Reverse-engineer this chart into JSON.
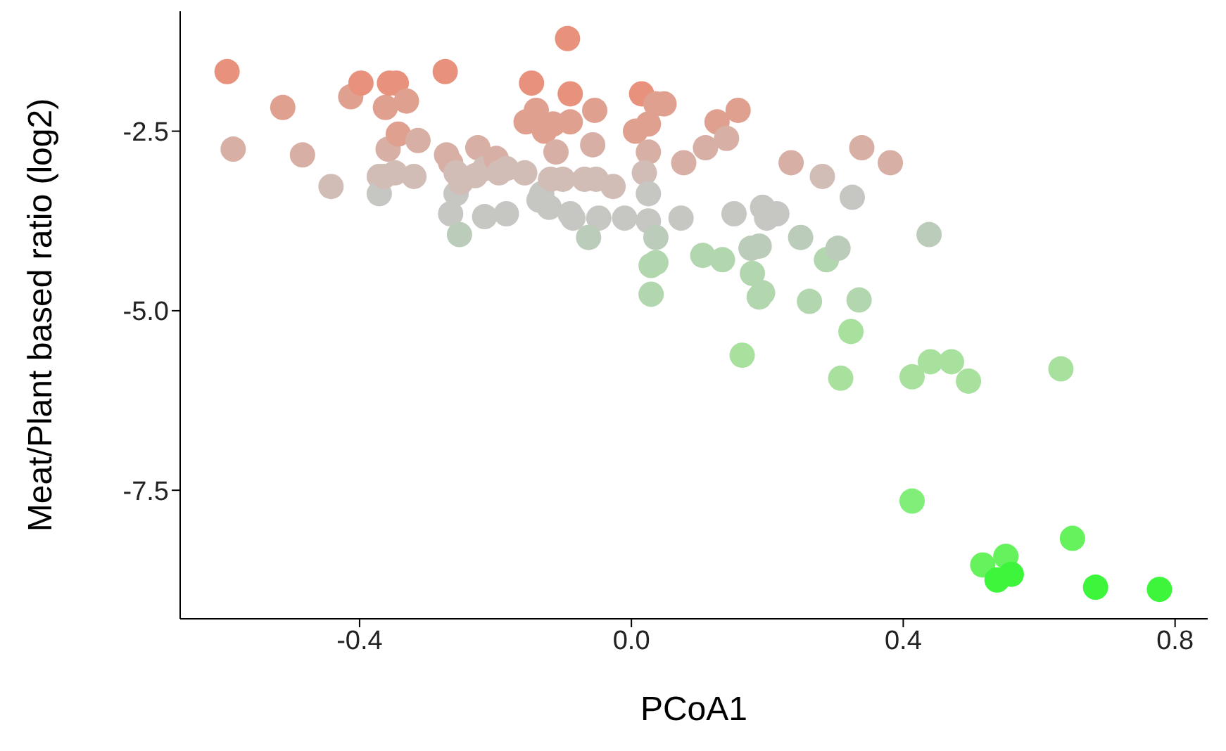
{
  "chart_data": {
    "type": "scatter",
    "xlabel": "PCoA1",
    "ylabel": "Meat/Plant based ratio (log2)",
    "marker": "circle",
    "grid": false,
    "legend": false,
    "xlim": [
      -0.664,
      0.848
    ],
    "xticks": [
      {
        "value": -0.4,
        "label": "-0.4"
      },
      {
        "value": 0,
        "label": "0.0"
      },
      {
        "value": 0.4,
        "label": "0.4"
      },
      {
        "value": 0.8,
        "label": "0.8"
      }
    ],
    "ylim": [
      -9.29,
      -0.83
    ],
    "yticks": [
      {
        "value": -2.5,
        "label": "-2.5"
      },
      {
        "value": -5,
        "label": "-5.0"
      },
      {
        "value": -7.5,
        "label": "-7.5"
      }
    ],
    "x": [
      -0.595,
      -0.586,
      -0.513,
      -0.484,
      -0.442,
      -0.413,
      -0.398,
      -0.371,
      -0.362,
      -0.356,
      -0.346,
      -0.358,
      -0.343,
      -0.331,
      -0.314,
      -0.348,
      -0.274,
      -0.272,
      -0.266,
      -0.258,
      -0.226,
      -0.216,
      -0.199,
      -0.184,
      -0.155,
      -0.147,
      -0.14,
      -0.128,
      -0.115,
      -0.111,
      -0.094,
      -0.09,
      -0.09,
      -0.054,
      -0.057,
      0.015,
      0.036,
      0.048,
      0.025,
      0.006,
      0.025,
      0.077,
      0.109,
      0.126,
      0.157,
      0.14,
      0.235,
      0.281,
      0.339,
      0.381,
      -0.371,
      -0.364,
      -0.32,
      -0.258,
      -0.251,
      -0.23,
      -0.195,
      -0.157,
      -0.132,
      -0.119,
      -0.101,
      -0.069,
      -0.052,
      -0.027,
      0.019,
      0.025,
      -0.266,
      -0.216,
      -0.184,
      -0.136,
      -0.121,
      -0.09,
      -0.086,
      -0.048,
      -0.01,
      0.025,
      0.073,
      0.151,
      0.193,
      0.199,
      0.214,
      0.325,
      -0.253,
      -0.063,
      0.036,
      0.105,
      0.134,
      0.176,
      0.188,
      0.249,
      0.287,
      0.304,
      0.438,
      0.029,
      0.036,
      0.178,
      0.188,
      0.193,
      0.029,
      0.262,
      0.335,
      0.323,
      0.163,
      0.308,
      0.413,
      0.44,
      0.471,
      0.496,
      0.632,
      0.413,
      0.649,
      0.517,
      0.551,
      0.538,
      0.559,
      0.683,
      0.777
    ],
    "values": [
      -1.67,
      -2.75,
      -2.17,
      -2.83,
      -3.27,
      -2.02,
      -1.83,
      -3.13,
      -2.17,
      -1.83,
      -1.83,
      -2.75,
      -2.54,
      -2.08,
      -2.63,
      -3.08,
      -1.67,
      -2.83,
      -2.94,
      -3.08,
      -2.73,
      -3.02,
      -2.88,
      -3.02,
      -2.37,
      -1.83,
      -2.21,
      -2.5,
      -2.4,
      -2.79,
      -1.21,
      -1.98,
      -2.37,
      -2.21,
      -2.69,
      -1.98,
      -2.12,
      -2.12,
      -2.4,
      -2.5,
      -2.79,
      -2.94,
      -2.73,
      -2.37,
      -2.21,
      -2.6,
      -2.94,
      -3.13,
      -2.73,
      -2.94,
      -3.37,
      -3.13,
      -3.13,
      -3.37,
      -3.21,
      -3.12,
      -3.08,
      -3.08,
      -3.37,
      -3.17,
      -3.17,
      -3.17,
      -3.17,
      -3.27,
      -3.08,
      -3.37,
      -3.65,
      -3.69,
      -3.65,
      -3.46,
      -3.56,
      -3.65,
      -3.71,
      -3.71,
      -3.71,
      -3.75,
      -3.71,
      -3.65,
      -3.56,
      -3.71,
      -3.65,
      -3.42,
      -3.94,
      -3.98,
      -3.98,
      -4.23,
      -4.29,
      -4.13,
      -4.1,
      -3.98,
      -4.29,
      -4.13,
      -3.94,
      -4.37,
      -4.33,
      -4.48,
      -4.81,
      -4.75,
      -4.77,
      -4.87,
      -4.85,
      -5.29,
      -5.62,
      -5.94,
      -5.92,
      -5.71,
      -5.71,
      -5.98,
      -5.81,
      -7.65,
      -8.17,
      -8.54,
      -8.42,
      -8.75,
      -8.67,
      -8.85,
      -8.88
    ],
    "colors": [
      "#e8927e",
      "#d8afa5",
      "#e0a090",
      "#d8afa5",
      "#d2bcb6",
      "#e0a090",
      "#e8927e",
      "#d2bcb6",
      "#e0a090",
      "#e8927e",
      "#e8927e",
      "#d8afa5",
      "#e0a090",
      "#e0a090",
      "#d8afa5",
      "#d2bcb6",
      "#e8927e",
      "#d8afa5",
      "#d8afa5",
      "#d2bcb6",
      "#d8afa5",
      "#d2bcb6",
      "#d8afa5",
      "#d2bcb6",
      "#e0a090",
      "#e8927e",
      "#e0a090",
      "#e0a090",
      "#e0a090",
      "#d8afa5",
      "#e8927e",
      "#e8927e",
      "#e0a090",
      "#e0a090",
      "#d8afa5",
      "#e8927e",
      "#e0a090",
      "#e0a090",
      "#e0a090",
      "#e0a090",
      "#d8afa5",
      "#d8afa5",
      "#d8afa5",
      "#e0a090",
      "#e0a090",
      "#d8afa5",
      "#d8afa5",
      "#d2bcb6",
      "#d8afa5",
      "#d8afa5",
      "#c6c6c3",
      "#d2bcb6",
      "#d2bcb6",
      "#c6c6c3",
      "#d2bcb6",
      "#d2bcb6",
      "#d2bcb6",
      "#d2bcb6",
      "#c6c6c3",
      "#d2bcb6",
      "#d2bcb6",
      "#d2bcb6",
      "#d2bcb6",
      "#d2bcb6",
      "#d2bcb6",
      "#c6c6c3",
      "#c6c6c3",
      "#c6c6c3",
      "#c6c6c3",
      "#c6c6c3",
      "#c6c6c3",
      "#c6c6c3",
      "#c6c6c3",
      "#c6c6c3",
      "#c6c6c3",
      "#c6c6c3",
      "#c6c6c3",
      "#c6c6c3",
      "#c6c6c3",
      "#c6c6c3",
      "#c6c6c3",
      "#c6c6c3",
      "#bcccba",
      "#bcccba",
      "#bcccba",
      "#b2d6ae",
      "#b2d6ae",
      "#bcccba",
      "#bcccba",
      "#bcccba",
      "#b2d6ae",
      "#bcccba",
      "#bcccba",
      "#b2d6ae",
      "#b2d6ae",
      "#b2d6ae",
      "#b2d6ae",
      "#b2d6ae",
      "#b2d6ae",
      "#b2d6ae",
      "#b2d6ae",
      "#a8e09e",
      "#a8e09e",
      "#a8e09e",
      "#a8e09e",
      "#a8e09e",
      "#a8e09e",
      "#a8e09e",
      "#a8e09e",
      "#80ee78",
      "#66f25c",
      "#66f25c",
      "#66f25c",
      "#3df53a",
      "#3df53a",
      "#3df53a",
      "#3df53a"
    ]
  }
}
